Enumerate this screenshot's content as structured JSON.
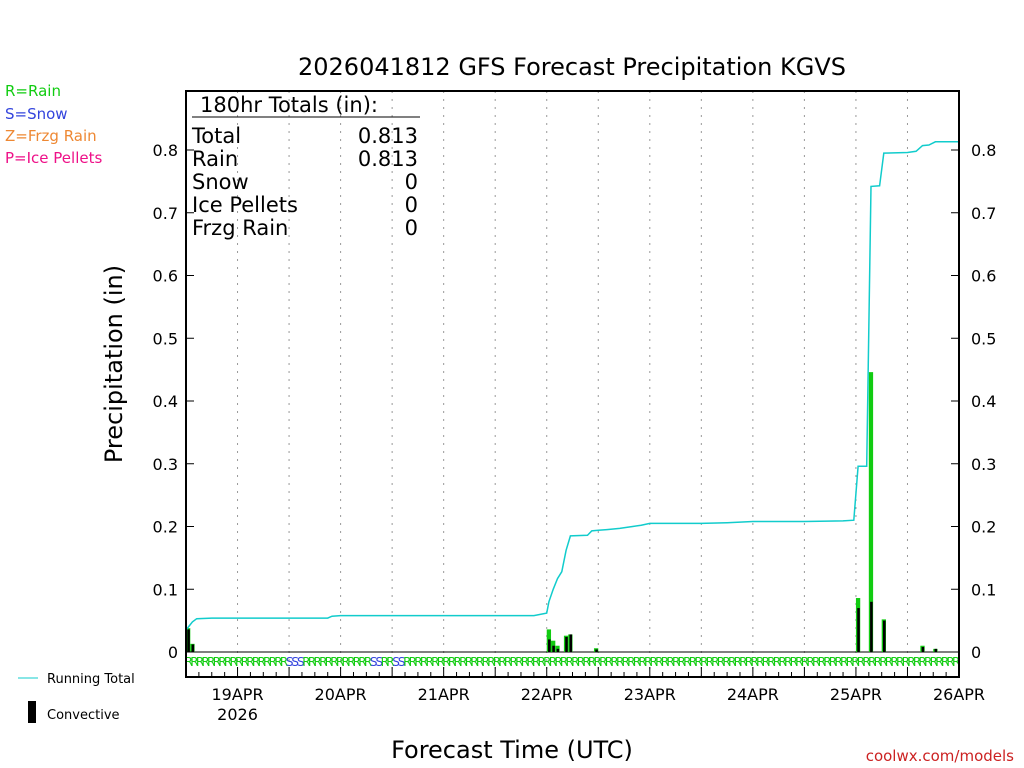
{
  "chart_data": {
    "type": "bar",
    "title": "2026041812 GFS Forecast Precipitation KGVS",
    "xlabel": "Forecast Time (UTC)",
    "ylabel": "Precipitation (in)",
    "ylim": [
      0,
      0.9
    ],
    "yticks": [
      0,
      0.1,
      0.2,
      0.3,
      0.4,
      0.5,
      0.6,
      0.7,
      0.8
    ],
    "ytick_labels": [
      "0",
      "0.1",
      "0.2",
      "0.3",
      "0.4",
      "0.5",
      "0.6",
      "0.7",
      "0.8"
    ],
    "xlim_hours": [
      0,
      180
    ],
    "xticks": [
      {
        "hour": 12,
        "label": "19APR",
        "sublabel": "2026"
      },
      {
        "hour": 36,
        "label": "20APR",
        "sublabel": ""
      },
      {
        "hour": 60,
        "label": "21APR",
        "sublabel": ""
      },
      {
        "hour": 84,
        "label": "22APR",
        "sublabel": ""
      },
      {
        "hour": 108,
        "label": "23APR",
        "sublabel": ""
      },
      {
        "hour": 132,
        "label": "24APR",
        "sublabel": ""
      },
      {
        "hour": 156,
        "label": "25APR",
        "sublabel": ""
      },
      {
        "hour": 180,
        "label": "26APR",
        "sublabel": ""
      }
    ],
    "grid": "dotted vertical at day boundaries",
    "precip_bars": [
      {
        "hour": 0.5,
        "value": 0.038,
        "convective": 0.036
      },
      {
        "hour": 1.5,
        "value": 0.013,
        "convective": 0.012
      },
      {
        "hour": 84.5,
        "value": 0.036,
        "convective": 0.02
      },
      {
        "hour": 85.5,
        "value": 0.018,
        "convective": 0.01
      },
      {
        "hour": 86.5,
        "value": 0.01,
        "convective": 0.005
      },
      {
        "hour": 88.5,
        "value": 0.026,
        "convective": 0.024
      },
      {
        "hour": 89.5,
        "value": 0.028,
        "convective": 0.028
      },
      {
        "hour": 95.5,
        "value": 0.006,
        "convective": 0.004
      },
      {
        "hour": 156.5,
        "value": 0.086,
        "convective": 0.07
      },
      {
        "hour": 159.5,
        "value": 0.446,
        "convective": 0.08
      },
      {
        "hour": 162.5,
        "value": 0.052,
        "convective": 0.05
      },
      {
        "hour": 171.5,
        "value": 0.01,
        "convective": 0.008
      },
      {
        "hour": 174.5,
        "value": 0.005,
        "convective": 0.005
      }
    ],
    "running_total": [
      [
        0,
        0.035
      ],
      [
        1.5,
        0.048
      ],
      [
        2.5,
        0.053
      ],
      [
        6,
        0.054
      ],
      [
        33,
        0.054
      ],
      [
        34,
        0.057
      ],
      [
        36,
        0.058
      ],
      [
        81,
        0.058
      ],
      [
        84,
        0.062
      ],
      [
        84.5,
        0.08
      ],
      [
        85.5,
        0.1
      ],
      [
        86.5,
        0.117
      ],
      [
        87.5,
        0.128
      ],
      [
        88.5,
        0.162
      ],
      [
        89.5,
        0.185
      ],
      [
        93.5,
        0.186
      ],
      [
        94.5,
        0.193
      ],
      [
        96,
        0.194
      ],
      [
        98,
        0.195
      ],
      [
        101,
        0.197
      ],
      [
        104,
        0.2
      ],
      [
        106,
        0.202
      ],
      [
        108,
        0.205
      ],
      [
        120,
        0.205
      ],
      [
        126,
        0.206
      ],
      [
        132,
        0.208
      ],
      [
        144,
        0.208
      ],
      [
        153,
        0.209
      ],
      [
        155.5,
        0.21
      ],
      [
        156.5,
        0.296
      ],
      [
        158.5,
        0.296
      ],
      [
        159.5,
        0.742
      ],
      [
        161.5,
        0.743
      ],
      [
        162.5,
        0.795
      ],
      [
        168,
        0.796
      ],
      [
        170,
        0.798
      ],
      [
        171.5,
        0.807
      ],
      [
        173,
        0.808
      ],
      [
        174.5,
        0.813
      ],
      [
        180,
        0.813
      ]
    ],
    "ptype_row": "RRRRRRRRRRRRRRRRRRSSSRRRRRRRRRRRRSSRRSSRRRRRRRRRRRRRRRRRRRRRRRRRRRRRRRRRRRRRRRRRRRRRRRRRRRRRRRRRRRRRRRRRRRRRRRRRRRRRRRRRRRRRRRRRRRRRRRRRRR",
    "colors": {
      "rain": "#11cc11",
      "snow": "#3344dd",
      "frzg_rain": "#ee8833",
      "ice_pellets": "#ee1188",
      "running_total": "#11cccc",
      "convective": "#000000"
    }
  },
  "legend": {
    "rain": "R=Rain",
    "snow": "S=Snow",
    "frzg": "Z=Frzg Rain",
    "ice": "P=Ice Pellets",
    "running_total": "Running Total",
    "convective": "Convective"
  },
  "totals": {
    "heading": "180hr Totals (in):",
    "rows": [
      {
        "label": "Total",
        "value": "0.813"
      },
      {
        "label": "Rain",
        "value": "0.813"
      },
      {
        "label": "Snow",
        "value": "0"
      },
      {
        "label": "Ice Pellets",
        "value": "0"
      },
      {
        "label": "Frzg Rain",
        "value": "0"
      }
    ]
  },
  "credit": "coolwx.com/models"
}
